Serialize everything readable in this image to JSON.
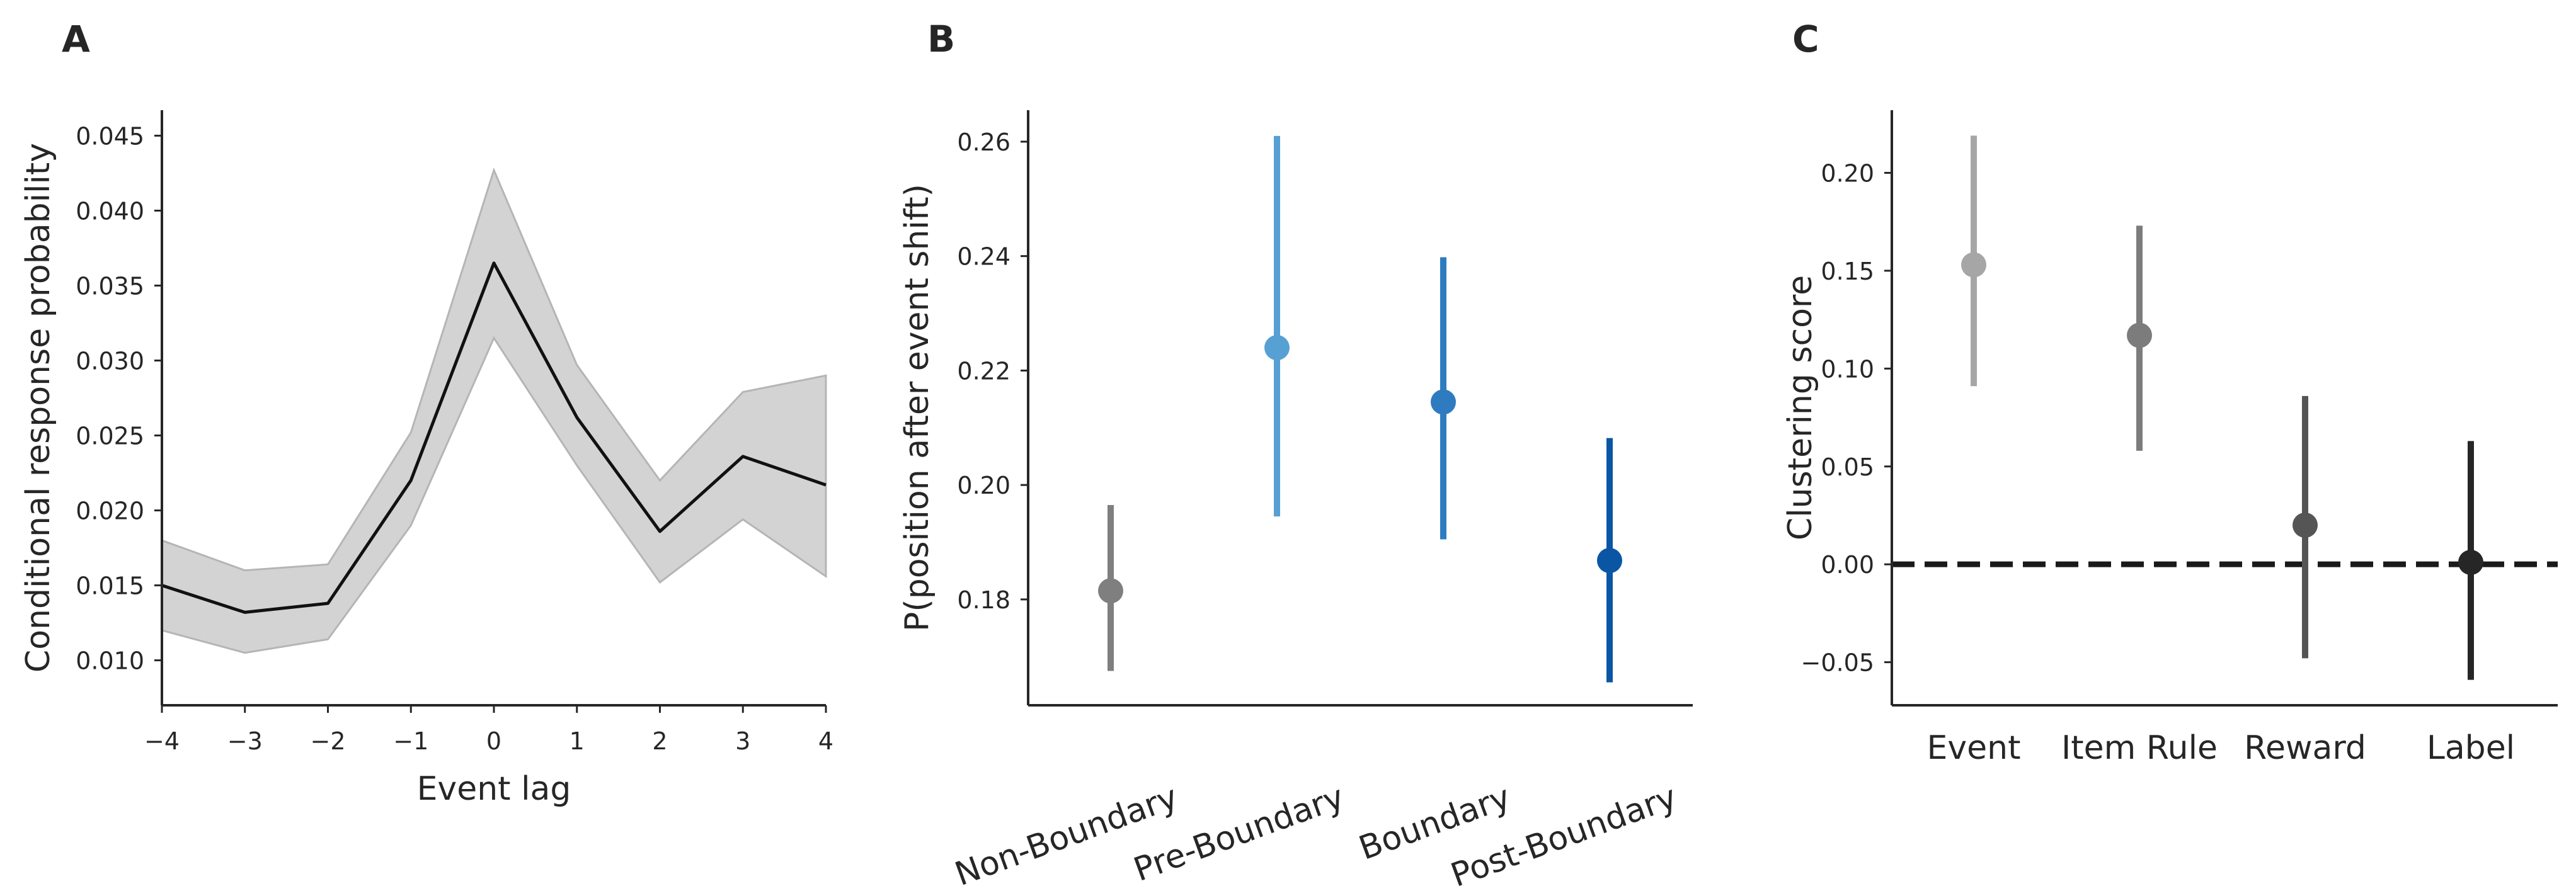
{
  "chart_data": [
    {
      "panel": "A",
      "type": "line",
      "xlabel": "Event lag",
      "ylabel": "Conditional response probability",
      "x": [
        -4,
        -3,
        -2,
        -1,
        0,
        1,
        2,
        3,
        4
      ],
      "x_tick_labels": [
        "−4",
        "−3",
        "−2",
        "−1",
        "0",
        "1",
        "2",
        "3",
        "4"
      ],
      "y_ticks": [
        0.01,
        0.015,
        0.02,
        0.025,
        0.03,
        0.035,
        0.04,
        0.045
      ],
      "y_tick_labels": [
        "0.010",
        "0.015",
        "0.020",
        "0.025",
        "0.030",
        "0.035",
        "0.040",
        "0.045"
      ],
      "xlim": [
        -4,
        4
      ],
      "ylim": [
        0.007,
        0.0467
      ],
      "grid": false,
      "series": [
        {
          "values": [
            0.015,
            0.0132,
            0.0138,
            0.022,
            0.0365,
            0.0262,
            0.0186,
            0.0236,
            0.0217
          ],
          "ci_lower": [
            0.012,
            0.0105,
            0.0114,
            0.019,
            0.0315,
            0.023,
            0.0152,
            0.0194,
            0.0156
          ],
          "ci_upper": [
            0.018,
            0.016,
            0.0164,
            0.0252,
            0.0427,
            0.0297,
            0.022,
            0.0279,
            0.029
          ],
          "color": "#111111",
          "band_color": "#d3d3d3"
        }
      ]
    },
    {
      "panel": "B",
      "type": "scatter",
      "xlabel": "",
      "ylabel": "P(position after event shift)",
      "categories": [
        "Non-Boundary",
        "Pre-Boundary",
        "Boundary",
        "Post-Boundary"
      ],
      "values": [
        0.1815,
        0.224,
        0.2145,
        0.1868
      ],
      "ci_lower": [
        0.1675,
        0.1945,
        0.1905,
        0.1655
      ],
      "ci_upper": [
        0.1965,
        0.261,
        0.2398,
        0.2082
      ],
      "colors": [
        "#7f7f7f",
        "#56a0d3",
        "#2e7cbf",
        "#0b56a4"
      ],
      "y_ticks": [
        0.18,
        0.2,
        0.22,
        0.24,
        0.26
      ],
      "y_tick_labels": [
        "0.18",
        "0.20",
        "0.22",
        "0.24",
        "0.26"
      ],
      "ylim": [
        0.1615,
        0.2655
      ],
      "grid": false
    },
    {
      "panel": "C",
      "type": "scatter",
      "xlabel": "",
      "ylabel": "Clustering score",
      "categories": [
        "Event",
        "Item Rule",
        "Reward",
        "Label"
      ],
      "values": [
        0.153,
        0.117,
        0.02,
        0.001
      ],
      "ci_lower": [
        0.091,
        0.058,
        -0.048,
        -0.059
      ],
      "ci_upper": [
        0.219,
        0.173,
        0.086,
        0.063
      ],
      "colors": [
        "#a6a6a6",
        "#7c7c7c",
        "#555555",
        "#262626"
      ],
      "reference_line": 0.0,
      "y_ticks": [
        -0.05,
        0.0,
        0.05,
        0.1,
        0.15,
        0.2
      ],
      "y_tick_labels": [
        "−0.05",
        "0.00",
        "0.05",
        "0.10",
        "0.15",
        "0.20"
      ],
      "ylim": [
        -0.072,
        0.232
      ],
      "grid": false
    }
  ]
}
